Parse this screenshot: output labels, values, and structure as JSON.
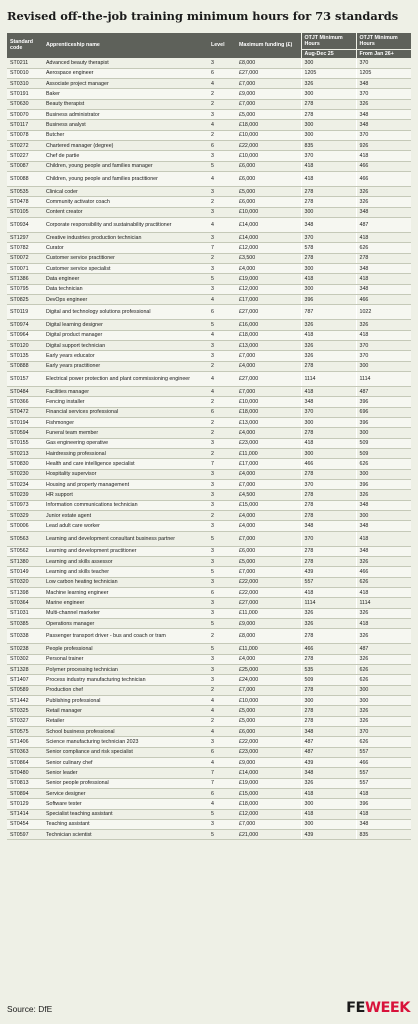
{
  "title": "Revised off-the-job training minimum hours for 73 standards",
  "columns": {
    "code": "Standard code",
    "name": "Apprenticeship name",
    "level": "Level",
    "funding": "Maximum funding (£)",
    "otjt": "OTJT Minimum Hours",
    "aug": "Aug-Dec 25",
    "jan": "From Jan 26+"
  },
  "rows": [
    [
      "ST0211",
      "Advanced beauty therapist",
      "3",
      "£8,000",
      "300",
      "370"
    ],
    [
      "ST0010",
      "Aerospace engineer",
      "6",
      "£27,000",
      "1205",
      "1205"
    ],
    [
      "ST0310",
      "Associate project manager",
      "4",
      "£7,000",
      "326",
      "348"
    ],
    [
      "ST0191",
      "Baker",
      "2",
      "£9,000",
      "300",
      "370"
    ],
    [
      "ST0630",
      "Beauty therapist",
      "2",
      "£7,000",
      "278",
      "326"
    ],
    [
      "ST0070",
      "Business administrator",
      "3",
      "£5,000",
      "278",
      "348"
    ],
    [
      "ST0117",
      "Business analyst",
      "4",
      "£18,000",
      "300",
      "348"
    ],
    [
      "ST0078",
      "Butcher",
      "2",
      "£10,000",
      "300",
      "370"
    ],
    [
      "ST0272",
      "Chartered manager (degree)",
      "6",
      "£22,000",
      "835",
      "926"
    ],
    [
      "ST0227",
      "Chef de partie",
      "3",
      "£10,000",
      "370",
      "418"
    ],
    [
      "ST0087",
      "Children, young people and families manager",
      "5",
      "£6,000",
      "418",
      "466"
    ],
    [
      "ST0088",
      "Children, young people and families practitioner",
      "4",
      "£6,000",
      "418",
      "466"
    ],
    [
      "ST0535",
      "Clinical coder",
      "3",
      "£5,000",
      "278",
      "326"
    ],
    [
      "ST0478",
      "Community activator coach",
      "2",
      "£6,000",
      "278",
      "326"
    ],
    [
      "ST0105",
      "Content creator",
      "3",
      "£10,000",
      "300",
      "348"
    ],
    [
      "ST0934",
      "Corporate responsibility and sustainability practitioner",
      "4",
      "£14,000",
      "348",
      "487"
    ],
    [
      "ST1297",
      "Creative industries production technician",
      "3",
      "£14,000",
      "370",
      "418"
    ],
    [
      "ST0782",
      "Curator",
      "7",
      "£12,000",
      "578",
      "626"
    ],
    [
      "ST0072",
      "Customer service practitioner",
      "2",
      "£3,500",
      "278",
      "278"
    ],
    [
      "ST0071",
      "Customer service specialist",
      "3",
      "£4,000",
      "300",
      "348"
    ],
    [
      "ST1386",
      "Data engineer",
      "5",
      "£19,000",
      "418",
      "418"
    ],
    [
      "ST0795",
      "Data technician",
      "3",
      "£12,000",
      "300",
      "348"
    ],
    [
      "ST0825",
      "DevOps engineer",
      "4",
      "£17,000",
      "396",
      "466"
    ],
    [
      "ST0119",
      "Digital and technology solutions professional",
      "6",
      "£27,000",
      "787",
      "1022"
    ],
    [
      "ST0974",
      "Digital learning designer",
      "5",
      "£16,000",
      "326",
      "326"
    ],
    [
      "ST0964",
      "Digital product manager",
      "4",
      "£18,000",
      "418",
      "418"
    ],
    [
      "ST0120",
      "Digital support technician",
      "3",
      "£13,000",
      "326",
      "370"
    ],
    [
      "ST0135",
      "Early years educator",
      "3",
      "£7,000",
      "326",
      "370"
    ],
    [
      "ST0888",
      "Early years practitioner",
      "2",
      "£4,000",
      "278",
      "300"
    ],
    [
      "ST0157",
      "Electrical power protection and plant commissioning engineer",
      "4",
      "£27,000",
      "1114",
      "1114"
    ],
    [
      "ST0484",
      "Facilities manager",
      "4",
      "£7,000",
      "418",
      "487"
    ],
    [
      "ST0366",
      "Fencing installer",
      "2",
      "£10,000",
      "348",
      "396"
    ],
    [
      "ST0472",
      "Financial services professional",
      "6",
      "£18,000",
      "370",
      "696"
    ],
    [
      "ST0194",
      "Fishmonger",
      "2",
      "£13,000",
      "300",
      "396"
    ],
    [
      "ST0594",
      "Funeral team member",
      "2",
      "£4,000",
      "278",
      "300"
    ],
    [
      "ST0155",
      "Gas engineering operative",
      "3",
      "£23,000",
      "418",
      "509"
    ],
    [
      "ST0213",
      "Hairdressing professional",
      "2",
      "£11,000",
      "300",
      "509"
    ],
    [
      "ST0830",
      "Health and care intelligence specialist",
      "7",
      "£17,000",
      "466",
      "626"
    ],
    [
      "ST0230",
      "Hospitality supervisor",
      "3",
      "£4,000",
      "278",
      "300"
    ],
    [
      "ST0234",
      "Housing and property management",
      "3",
      "£7,000",
      "370",
      "396"
    ],
    [
      "ST0239",
      "HR support",
      "3",
      "£4,500",
      "278",
      "326"
    ],
    [
      "ST0973",
      "Information communications technician",
      "3",
      "£15,000",
      "278",
      "348"
    ],
    [
      "ST0329",
      "Junior estate agent",
      "2",
      "£4,000",
      "278",
      "300"
    ],
    [
      "ST0006",
      "Lead adult care worker",
      "3",
      "£4,000",
      "348",
      "348"
    ],
    [
      "ST0563",
      "Learning and development consultant business partner",
      "5",
      "£7,000",
      "370",
      "418"
    ],
    [
      "ST0562",
      "Learning and development practitioner",
      "3",
      "£6,000",
      "278",
      "348"
    ],
    [
      "ST1380",
      "Learning and skills assessor",
      "3",
      "£5,000",
      "278",
      "326"
    ],
    [
      "ST0149",
      "Learning and skills teacher",
      "5",
      "£7,000",
      "439",
      "466"
    ],
    [
      "ST0320",
      "Low carbon heating technician",
      "3",
      "£22,000",
      "557",
      "626"
    ],
    [
      "ST1398",
      "Machine learning engineer",
      "6",
      "£22,000",
      "418",
      "418"
    ],
    [
      "ST0364",
      "Marine engineer",
      "3",
      "£27,000",
      "1114",
      "1114"
    ],
    [
      "ST1031",
      "Multi-channel marketer",
      "3",
      "£11,000",
      "326",
      "326"
    ],
    [
      "ST0385",
      "Operations manager",
      "5",
      "£9,000",
      "326",
      "418"
    ],
    [
      "ST0338",
      "Passenger transport driver - bus and coach or tram",
      "2",
      "£8,000",
      "278",
      "326"
    ],
    [
      "ST0238",
      "People professional",
      "5",
      "£11,000",
      "466",
      "487"
    ],
    [
      "ST0302",
      "Personal trainer",
      "3",
      "£4,000",
      "278",
      "326"
    ],
    [
      "ST1328",
      "Polymer processing technician",
      "3",
      "£25,000",
      "535",
      "626"
    ],
    [
      "ST1407",
      "Process industry manufacturing technician",
      "3",
      "£24,000",
      "509",
      "626"
    ],
    [
      "ST0589",
      "Production chef",
      "2",
      "£7,000",
      "278",
      "300"
    ],
    [
      "ST1442",
      "Publishing professional",
      "4",
      "£10,000",
      "300",
      "300"
    ],
    [
      "ST0325",
      "Retail manager",
      "4",
      "£5,000",
      "278",
      "326"
    ],
    [
      "ST0327",
      "Retailer",
      "2",
      "£5,000",
      "278",
      "326"
    ],
    [
      "ST0575",
      "School business professional",
      "4",
      "£6,000",
      "348",
      "370"
    ],
    [
      "ST1406",
      "Science manufacturing technician 2023",
      "3",
      "£22,000",
      "487",
      "626"
    ],
    [
      "ST0363",
      "Senior compliance and risk specialist",
      "6",
      "£23,000",
      "487",
      "557"
    ],
    [
      "ST0864",
      "Senior culinary chef",
      "4",
      "£9,000",
      "439",
      "466"
    ],
    [
      "ST0480",
      "Senior leader",
      "7",
      "£14,000",
      "348",
      "557"
    ],
    [
      "ST0813",
      "Senior people professional",
      "7",
      "£19,000",
      "326",
      "557"
    ],
    [
      "ST0894",
      "Service designer",
      "6",
      "£15,000",
      "418",
      "418"
    ],
    [
      "ST0129",
      "Software tester",
      "4",
      "£18,000",
      "300",
      "396"
    ],
    [
      "ST1414",
      "Specialist teaching assistant",
      "5",
      "£12,000",
      "418",
      "418"
    ],
    [
      "ST0454",
      "Teaching assistant",
      "3",
      "£7,000",
      "300",
      "348"
    ],
    [
      "ST0597",
      "Technician scientist",
      "5",
      "£21,000",
      "439",
      "835"
    ]
  ],
  "footer": {
    "source": "Source: DfE",
    "logo_fe": "FE",
    "logo_week": "WEEK"
  }
}
